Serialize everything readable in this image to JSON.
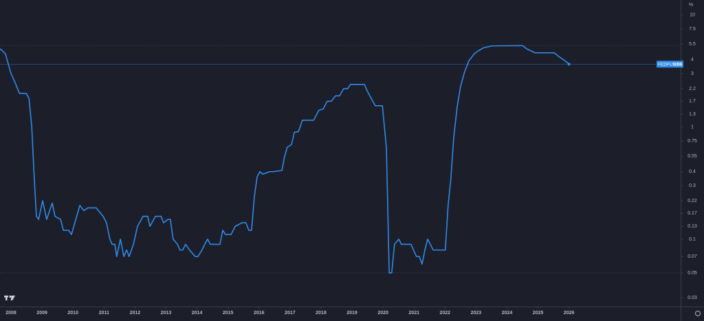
{
  "chart_data": {
    "type": "line",
    "log_scale": true,
    "grid": false,
    "y_unit": "%",
    "x": [
      2007.65,
      2007.82,
      2008.0,
      2008.13,
      2008.27,
      2008.49,
      2008.58,
      2008.67,
      2008.75,
      2008.82,
      2008.89,
      2009.02,
      2009.15,
      2009.33,
      2009.42,
      2009.6,
      2009.69,
      2009.86,
      2009.95,
      2010.22,
      2010.35,
      2010.48,
      2010.75,
      2010.97,
      2011.08,
      2011.19,
      2011.26,
      2011.35,
      2011.41,
      2011.53,
      2011.64,
      2011.73,
      2011.81,
      2011.95,
      2012.08,
      2012.26,
      2012.41,
      2012.48,
      2012.66,
      2012.84,
      2012.92,
      2013.06,
      2013.14,
      2013.23,
      2013.37,
      2013.45,
      2013.54,
      2013.63,
      2013.76,
      2013.94,
      2014.03,
      2014.16,
      2014.25,
      2014.34,
      2014.43,
      2014.74,
      2014.83,
      2014.92,
      2015.1,
      2015.23,
      2015.45,
      2015.58,
      2015.67,
      2015.76,
      2015.85,
      2015.94,
      2016.03,
      2016.12,
      2016.34,
      2016.47,
      2016.74,
      2016.82,
      2016.91,
      2017.05,
      2017.14,
      2017.27,
      2017.4,
      2017.76,
      2017.93,
      2018.07,
      2018.2,
      2018.33,
      2018.47,
      2018.6,
      2018.73,
      2018.86,
      2018.95,
      2019.4,
      2019.49,
      2019.62,
      2019.75,
      2019.98,
      2020.11,
      2020.2,
      2020.28,
      2020.37,
      2020.51,
      2020.59,
      2020.9,
      2021.08,
      2021.17,
      2021.26,
      2021.35,
      2021.44,
      2021.62,
      2022.01,
      2022.1,
      2022.19,
      2022.28,
      2022.39,
      2022.5,
      2022.63,
      2022.77,
      2022.94,
      2023.08,
      2023.25,
      2023.52,
      2024.5,
      2024.63,
      2024.9,
      2025.52,
      2025.65,
      2025.87,
      2026.0
    ],
    "series": [
      {
        "name": "FEDFUNDS",
        "color": "#2f8ae8",
        "values": [
          5.0,
          4.5,
          3.0,
          2.5,
          2.0,
          2.0,
          1.8,
          1.0,
          0.35,
          0.16,
          0.15,
          0.22,
          0.15,
          0.21,
          0.16,
          0.15,
          0.12,
          0.12,
          0.11,
          0.2,
          0.18,
          0.19,
          0.19,
          0.16,
          0.14,
          0.1,
          0.09,
          0.09,
          0.07,
          0.1,
          0.07,
          0.08,
          0.07,
          0.09,
          0.13,
          0.16,
          0.16,
          0.13,
          0.16,
          0.16,
          0.14,
          0.15,
          0.15,
          0.1,
          0.09,
          0.08,
          0.08,
          0.09,
          0.08,
          0.07,
          0.07,
          0.08,
          0.09,
          0.1,
          0.09,
          0.09,
          0.12,
          0.11,
          0.11,
          0.13,
          0.14,
          0.14,
          0.12,
          0.12,
          0.24,
          0.36,
          0.4,
          0.38,
          0.4,
          0.4,
          0.41,
          0.54,
          0.66,
          0.7,
          0.9,
          0.91,
          1.15,
          1.15,
          1.41,
          1.45,
          1.7,
          1.7,
          1.9,
          1.9,
          2.2,
          2.2,
          2.4,
          2.4,
          2.1,
          1.8,
          1.55,
          1.55,
          0.65,
          0.05,
          0.05,
          0.09,
          0.1,
          0.09,
          0.09,
          0.07,
          0.07,
          0.06,
          0.08,
          0.1,
          0.08,
          0.08,
          0.2,
          0.35,
          0.8,
          1.5,
          2.3,
          3.1,
          3.9,
          4.5,
          4.8,
          5.1,
          5.3,
          5.33,
          5.0,
          4.6,
          4.6,
          4.3,
          3.9,
          3.64
        ]
      }
    ],
    "hlines": [
      5.33,
      0.05
    ],
    "xlim": [
      2007.645,
      2029.6
    ],
    "ylim": [
      0.0254,
      13.6
    ],
    "xticks": [
      2008,
      2009,
      2010,
      2011,
      2012,
      2013,
      2014,
      2015,
      2016,
      2017,
      2018,
      2019,
      2020,
      2021,
      2022,
      2023,
      2024,
      2025,
      2026
    ],
    "yticks": [
      10,
      7.5,
      5.5,
      4,
      3,
      2.2,
      1.7,
      1.3,
      1,
      0.75,
      0.55,
      0.4,
      0.3,
      0.22,
      0.17,
      0.13,
      0.1,
      0.07,
      0.05,
      0.03
    ]
  }
}
